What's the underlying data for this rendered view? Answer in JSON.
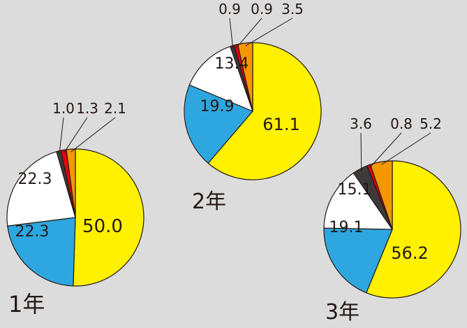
{
  "chart_data": [
    {
      "type": "pie",
      "title": "1年",
      "slices": [
        {
          "value": 50.0,
          "color": "#fff100"
        },
        {
          "value": 22.3,
          "color": "#2ea7e0"
        },
        {
          "value": 22.3,
          "color": "#ffffff"
        },
        {
          "value": 1.0,
          "color": "#3e3a39"
        },
        {
          "value": 1.3,
          "color": "#e60012"
        },
        {
          "value": 2.1,
          "color": "#f39800"
        }
      ],
      "labels": [
        "50.0",
        "22.3",
        "22.3",
        "1.0",
        "1.3",
        "2.1"
      ]
    },
    {
      "type": "pie",
      "title": "2年",
      "slices": [
        {
          "value": 61.1,
          "color": "#fff100"
        },
        {
          "value": 19.9,
          "color": "#2ea7e0"
        },
        {
          "value": 13.4,
          "color": "#ffffff"
        },
        {
          "value": 0.9,
          "color": "#3e3a39"
        },
        {
          "value": 0.9,
          "color": "#e60012"
        },
        {
          "value": 3.5,
          "color": "#f39800"
        }
      ],
      "labels": [
        "61.1",
        "19.9",
        "13.4",
        "0.9",
        "0.9",
        "3.5"
      ]
    },
    {
      "type": "pie",
      "title": "3年",
      "slices": [
        {
          "value": 56.2,
          "color": "#fff100"
        },
        {
          "value": 19.1,
          "color": "#2ea7e0"
        },
        {
          "value": 15.1,
          "color": "#ffffff"
        },
        {
          "value": 3.6,
          "color": "#3e3a39"
        },
        {
          "value": 0.8,
          "color": "#e60012"
        },
        {
          "value": 5.2,
          "color": "#f39800"
        }
      ],
      "labels": [
        "56.2",
        "19.1",
        "15.1",
        "3.6",
        "0.8",
        "5.2"
      ]
    }
  ]
}
